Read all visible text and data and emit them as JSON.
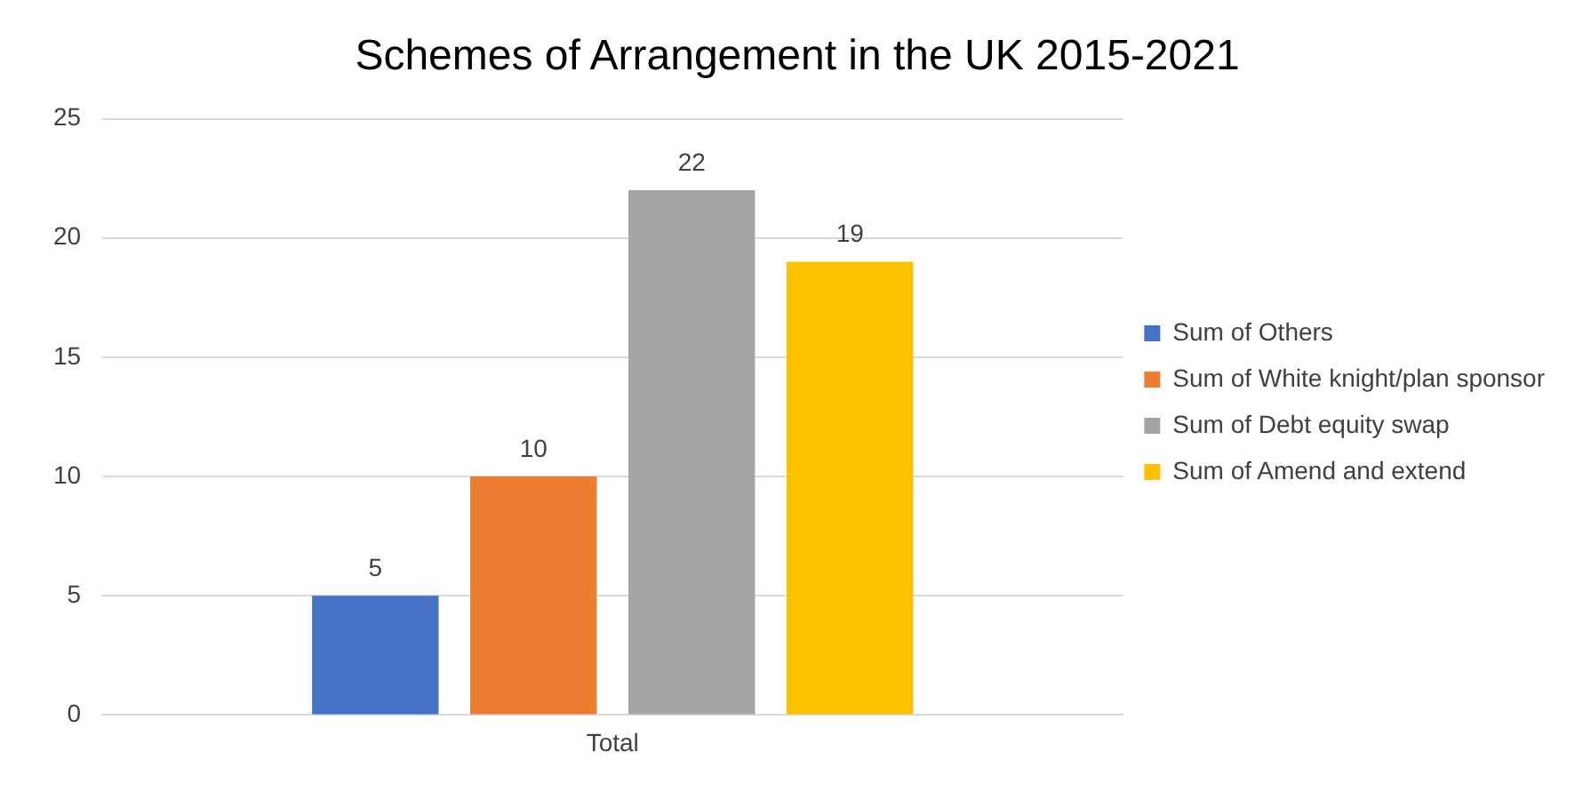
{
  "chart_data": {
    "type": "bar",
    "title": "Schemes of Arrangement in the UK 2015-2021",
    "categories": [
      "Total"
    ],
    "series": [
      {
        "name": "Sum of Others",
        "color": "#4472c4",
        "values": [
          5
        ]
      },
      {
        "name": "Sum of White knight/plan sponsor",
        "color": "#ed7d31",
        "values": [
          10
        ]
      },
      {
        "name": "Sum of Debt equity swap",
        "color": "#a5a5a5",
        "values": [
          22
        ]
      },
      {
        "name": "Sum of Amend and extend",
        "color": "#ffc000",
        "values": [
          19
        ]
      }
    ],
    "ylim": [
      0,
      25
    ],
    "yticks": [
      0,
      5,
      10,
      15,
      20,
      25
    ],
    "grid": "y",
    "legend": "right",
    "data_labels": true
  }
}
